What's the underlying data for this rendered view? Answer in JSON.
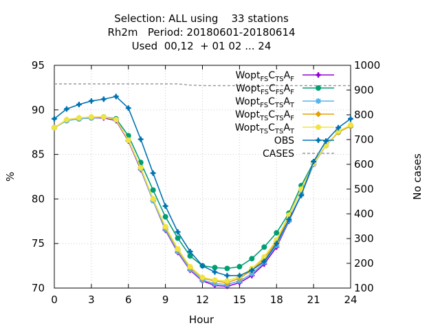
{
  "chart_data": {
    "type": "line",
    "title_lines": [
      "Selection: ALL using    33 stations",
      "Rh2m   Period: 20180601-20180614",
      "Used  00,12  + 01 02 ... 24"
    ],
    "xlabel": "Hour",
    "ylabel": "%",
    "y2label": "No cases",
    "xlim": [
      0,
      24
    ],
    "ylim": [
      70,
      95
    ],
    "y2lim": [
      100,
      1000
    ],
    "xticks": [
      "0",
      "3",
      "6",
      "9",
      "12",
      "15",
      "18",
      "21",
      "24"
    ],
    "yticks": [
      "70",
      "75",
      "80",
      "85",
      "90",
      "95"
    ],
    "y2ticks": [
      "100",
      "200",
      "300",
      "400",
      "500",
      "600",
      "700",
      "800",
      "900",
      "1000"
    ],
    "grid": true,
    "legend_position": "top-right",
    "x": [
      0,
      1,
      2,
      3,
      4,
      5,
      6,
      7,
      8,
      9,
      10,
      11,
      12,
      13,
      14,
      15,
      16,
      17,
      18,
      19,
      20,
      21,
      22,
      23,
      24
    ],
    "series": [
      {
        "name": "Wopt FS C TS A F",
        "label_parts": [
          [
            "Wopt",
            ""
          ],
          [
            "FS",
            "sub"
          ],
          [
            "C",
            ""
          ],
          [
            "TS",
            "sub"
          ],
          [
            "A",
            ""
          ],
          [
            "F",
            "sub"
          ]
        ],
        "color": "#9400d3",
        "marker": "plus",
        "values": [
          88.0,
          88.8,
          89.0,
          89.1,
          89.1,
          88.8,
          86.5,
          83.3,
          79.8,
          76.5,
          74.0,
          72.0,
          70.8,
          70.3,
          70.2,
          70.6,
          71.4,
          72.7,
          74.6,
          77.5,
          80.5,
          83.9,
          86.0,
          87.5,
          88.2
        ]
      },
      {
        "name": "Wopt FS C FS A F",
        "label_parts": [
          [
            "Wopt",
            ""
          ],
          [
            "FS",
            "sub"
          ],
          [
            "C",
            ""
          ],
          [
            "FS",
            "sub"
          ],
          [
            "A",
            ""
          ],
          [
            "F",
            "sub"
          ]
        ],
        "color": "#009e73",
        "marker": "circle",
        "values": [
          88.0,
          88.8,
          89.0,
          89.1,
          89.2,
          89.0,
          87.1,
          84.1,
          81.0,
          78.0,
          75.6,
          73.6,
          72.5,
          72.3,
          72.2,
          72.4,
          73.3,
          74.6,
          76.2,
          78.4,
          81.5,
          84.1,
          86.0,
          87.5,
          88.2
        ]
      },
      {
        "name": "Wopt FS C TS A T",
        "label_parts": [
          [
            "Wopt",
            ""
          ],
          [
            "FS",
            "sub"
          ],
          [
            "C",
            ""
          ],
          [
            "TS",
            "sub"
          ],
          [
            "A",
            ""
          ],
          [
            "T",
            "sub"
          ]
        ],
        "color": "#56b4e9",
        "marker": "star",
        "values": [
          88.0,
          88.8,
          89.0,
          89.1,
          89.2,
          88.9,
          86.6,
          83.4,
          79.8,
          76.6,
          74.1,
          72.1,
          70.9,
          70.5,
          70.4,
          70.8,
          71.6,
          72.9,
          74.8,
          77.6,
          80.6,
          83.9,
          86.0,
          87.5,
          88.2
        ]
      },
      {
        "name": "Wopt TS C TS A F",
        "label_parts": [
          [
            "Wopt",
            ""
          ],
          [
            "TS",
            "sub"
          ],
          [
            "C",
            ""
          ],
          [
            "TS",
            "sub"
          ],
          [
            "A",
            ""
          ],
          [
            "F",
            "sub"
          ]
        ],
        "color": "#e69f00",
        "marker": "diamond",
        "values": [
          88.0,
          88.9,
          89.1,
          89.2,
          89.2,
          88.9,
          86.6,
          83.5,
          80.0,
          76.8,
          74.3,
          72.3,
          71.1,
          70.8,
          70.6,
          71.1,
          72.0,
          73.3,
          75.2,
          78.1,
          81.1,
          84.0,
          86.0,
          87.5,
          88.2
        ]
      },
      {
        "name": "Wopt TS C TS A T",
        "label_parts": [
          [
            "Wopt",
            ""
          ],
          [
            "TS",
            "sub"
          ],
          [
            "C",
            ""
          ],
          [
            "TS",
            "sub"
          ],
          [
            "A",
            ""
          ],
          [
            "T",
            "sub"
          ]
        ],
        "color": "#f0e442",
        "marker": "circle",
        "values": [
          88.0,
          88.9,
          89.1,
          89.2,
          89.2,
          88.9,
          86.6,
          83.5,
          80.0,
          76.9,
          74.4,
          72.4,
          71.2,
          70.9,
          70.8,
          71.3,
          72.2,
          73.5,
          75.4,
          78.2,
          81.1,
          84.0,
          86.0,
          87.6,
          88.3
        ]
      },
      {
        "name": "OBS",
        "label_parts": [
          [
            "OBS",
            ""
          ]
        ],
        "color": "#0072b2",
        "marker": "plus",
        "values": [
          89.0,
          90.1,
          90.6,
          91.0,
          91.2,
          91.5,
          90.2,
          86.7,
          82.9,
          79.2,
          76.3,
          74.1,
          72.5,
          71.8,
          71.4,
          71.4,
          72.0,
          73.0,
          75.0,
          77.7,
          80.4,
          84.2,
          86.5,
          88.0,
          89.0
        ]
      },
      {
        "name": "CASES",
        "label_parts": [
          [
            "CASES",
            ""
          ]
        ],
        "color": "#999999",
        "dashed": true,
        "axis": "y2",
        "values": [
          925,
          925,
          925,
          925,
          925,
          925,
          925,
          925,
          925,
          925,
          925,
          920,
          918,
          918,
          918,
          918,
          918,
          918,
          918,
          918,
          918,
          918,
          918,
          918,
          918
        ]
      }
    ]
  }
}
